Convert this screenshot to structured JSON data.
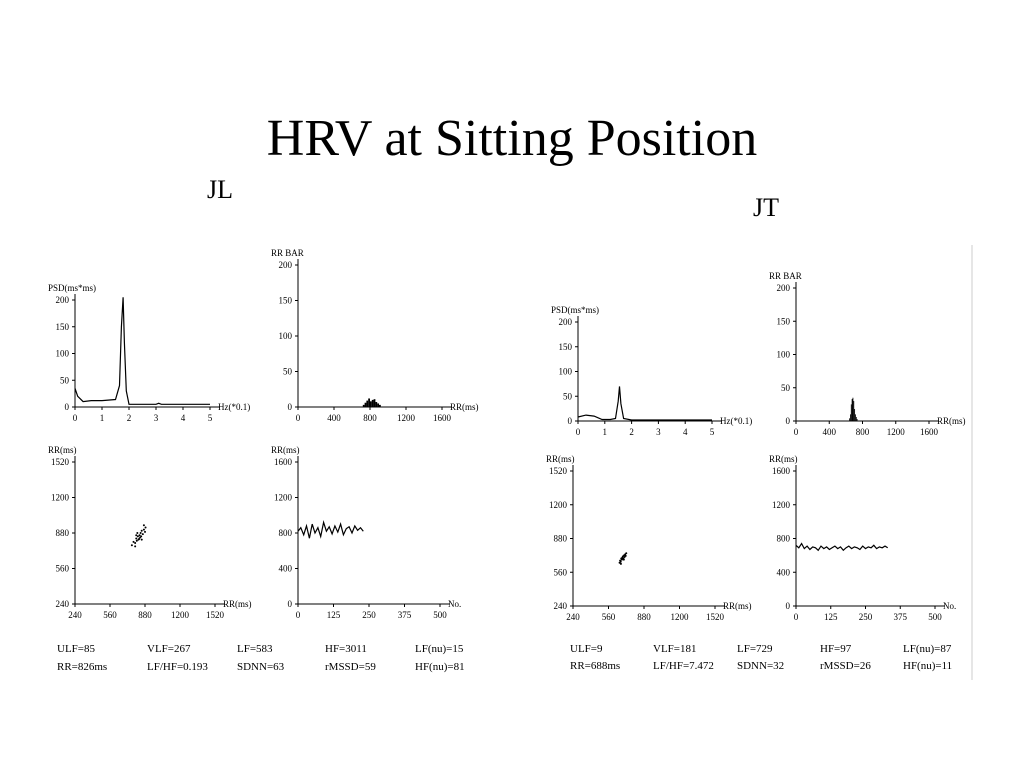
{
  "title": "HRV at Sitting Position",
  "groups": [
    {
      "label": "JL",
      "stats": [
        [
          "ULF=85",
          "VLF=267",
          "LF=583",
          "HF=3011",
          "LF(nu)=15"
        ],
        [
          "RR=826ms",
          "LF/HF=0.193",
          "SDNN=63",
          "rMSSD=59",
          "HF(nu)=81"
        ]
      ]
    },
    {
      "label": "JT",
      "stats": [
        [
          "ULF=9",
          "VLF=181",
          "LF=729",
          "HF=97",
          "LF(nu)=87"
        ],
        [
          "RR=688ms",
          "LF/HF=7.472",
          "SDNN=32",
          "rMSSD=26",
          "HF(nu)=11"
        ]
      ]
    }
  ],
  "chart_data": [
    {
      "type": "line",
      "y_label": "PSD(ms*ms)",
      "x_label": "Hz(*0.1)",
      "xlim": [
        0,
        5
      ],
      "ylim": [
        0,
        200
      ],
      "xticks": [
        0,
        1,
        2,
        3,
        4,
        5
      ],
      "yticks": [
        0,
        50,
        100,
        150,
        200
      ],
      "color": "#000000",
      "x": [
        0,
        0.1,
        0.3,
        0.6,
        1,
        1.5,
        1.65,
        1.72,
        1.78,
        1.83,
        1.9,
        2,
        2.5,
        3,
        3.1,
        3.2,
        4,
        5
      ],
      "values": [
        35,
        20,
        10,
        12,
        12,
        14,
        40,
        150,
        205,
        120,
        30,
        5,
        5,
        5,
        7,
        5,
        5,
        5
      ]
    },
    {
      "type": "histogram",
      "y_label": "RR BAR",
      "x_label": "RR(ms)",
      "xlim": [
        0,
        1600
      ],
      "ylim": [
        0,
        200
      ],
      "xticks": [
        0,
        400,
        800,
        1200,
        1600
      ],
      "yticks": [
        0,
        50,
        100,
        150,
        200
      ],
      "color": "#000000",
      "bins": [
        720,
        740,
        760,
        780,
        800,
        820,
        840,
        860,
        880,
        900,
        920
      ],
      "counts": [
        3,
        6,
        9,
        12,
        8,
        10,
        11,
        7,
        5,
        3
      ]
    },
    {
      "type": "scatter",
      "y_label": "RR(ms)",
      "x_label": "RR(ms)",
      "xlim": [
        240,
        1520
      ],
      "ylim": [
        240,
        1520
      ],
      "xticks": [
        240,
        560,
        880,
        1200,
        1520
      ],
      "yticks": [
        240,
        560,
        880,
        1200,
        1520
      ],
      "color": "#000000",
      "x": [
        760,
        775,
        790,
        800,
        805,
        815,
        820,
        826,
        830,
        835,
        840,
        845,
        850,
        860,
        870,
        880,
        885,
        790,
        810,
        850,
        870,
        800
      ],
      "values": [
        770,
        800,
        790,
        830,
        810,
        850,
        820,
        826,
        860,
        840,
        880,
        850,
        900,
        870,
        910,
        890,
        930,
        760,
        880,
        820,
        950,
        860
      ]
    },
    {
      "type": "line",
      "y_label": "RR(ms)",
      "x_label": "No.",
      "xlim": [
        0,
        500
      ],
      "ylim": [
        0,
        1600
      ],
      "xticks": [
        0,
        125,
        250,
        375,
        500
      ],
      "yticks": [
        0,
        400,
        800,
        1200,
        1600
      ],
      "color": "#000000",
      "x": [
        0,
        10,
        20,
        30,
        40,
        50,
        60,
        70,
        80,
        90,
        100,
        110,
        120,
        130,
        140,
        150,
        160,
        170,
        180,
        190,
        200,
        210,
        220,
        230
      ],
      "values": [
        820,
        860,
        780,
        880,
        740,
        900,
        800,
        860,
        760,
        920,
        820,
        870,
        790,
        880,
        810,
        900,
        780,
        850,
        870,
        800,
        880,
        830,
        860,
        820
      ]
    },
    {
      "type": "line",
      "y_label": "PSD(ms*ms)",
      "x_label": "Hz(*0.1)",
      "xlim": [
        0,
        5
      ],
      "ylim": [
        0,
        200
      ],
      "xticks": [
        0,
        1,
        2,
        3,
        4,
        5
      ],
      "yticks": [
        0,
        50,
        100,
        150,
        200
      ],
      "color": "#000000",
      "x": [
        0,
        0.3,
        0.6,
        0.9,
        1.2,
        1.4,
        1.5,
        1.55,
        1.6,
        1.7,
        2,
        3,
        4,
        5
      ],
      "values": [
        8,
        12,
        10,
        3,
        3,
        5,
        40,
        70,
        35,
        5,
        2,
        2,
        2,
        2
      ]
    },
    {
      "type": "histogram",
      "y_label": "RR BAR",
      "x_label": "RR(ms)",
      "xlim": [
        0,
        1600
      ],
      "ylim": [
        0,
        200
      ],
      "xticks": [
        0,
        400,
        800,
        1200,
        1600
      ],
      "yticks": [
        0,
        50,
        100,
        150,
        200
      ],
      "color": "#000000",
      "bins": [
        640,
        650,
        660,
        670,
        680,
        690,
        700,
        710,
        720,
        730,
        740
      ],
      "counts": [
        4,
        10,
        25,
        33,
        35,
        30,
        18,
        10,
        6,
        3
      ]
    },
    {
      "type": "scatter",
      "y_label": "RR(ms)",
      "x_label": "RR(ms)",
      "xlim": [
        240,
        1520
      ],
      "ylim": [
        240,
        1520
      ],
      "xticks": [
        240,
        560,
        880,
        1200,
        1520
      ],
      "yticks": [
        240,
        560,
        880,
        1200,
        1520
      ],
      "color": "#000000",
      "x": [
        660,
        665,
        670,
        675,
        680,
        685,
        688,
        690,
        695,
        700,
        705,
        710,
        715,
        720,
        672,
        698
      ],
      "values": [
        650,
        670,
        660,
        690,
        680,
        700,
        688,
        710,
        690,
        720,
        705,
        730,
        715,
        740,
        640,
        680
      ]
    },
    {
      "type": "line",
      "y_label": "RR(ms)",
      "x_label": "No.",
      "xlim": [
        0,
        500
      ],
      "ylim": [
        0,
        1600
      ],
      "xticks": [
        0,
        125,
        250,
        375,
        500
      ],
      "yticks": [
        0,
        400,
        800,
        1200,
        1600
      ],
      "color": "#000000",
      "x": [
        0,
        10,
        20,
        30,
        40,
        50,
        60,
        70,
        80,
        90,
        100,
        110,
        120,
        130,
        140,
        150,
        160,
        170,
        180,
        190,
        200,
        210,
        220,
        230,
        240,
        250,
        260,
        270,
        280,
        290,
        300,
        310,
        320,
        330
      ],
      "values": [
        720,
        690,
        740,
        680,
        710,
        670,
        700,
        690,
        660,
        710,
        680,
        700,
        670,
        690,
        710,
        680,
        700,
        660,
        690,
        710,
        680,
        700,
        690,
        670,
        710,
        680,
        700,
        690,
        720,
        680,
        700,
        690,
        710,
        690
      ]
    }
  ]
}
